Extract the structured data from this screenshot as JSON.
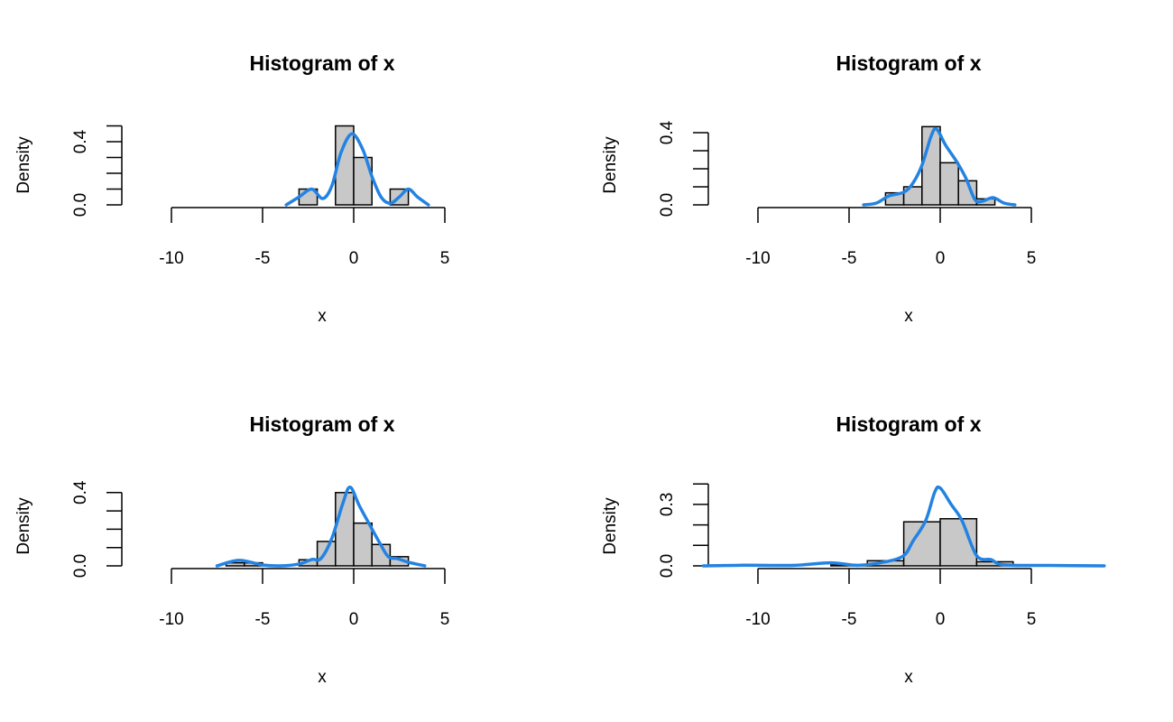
{
  "chart_data": [
    {
      "type": "bar",
      "title": "Histogram of x",
      "xlabel": "x",
      "ylabel": "Density",
      "xlim": [
        -10,
        5
      ],
      "ylim": [
        0,
        0.5
      ],
      "x_ticks": [
        "-10",
        "-5",
        "0",
        "5"
      ],
      "y_ticks": [
        0,
        0.1,
        0.2,
        0.3,
        0.4,
        0.5
      ],
      "y_tick_labels": [
        "0.0",
        "0.4"
      ],
      "bins": [
        [
          -3,
          -2
        ],
        [
          -2,
          -1
        ],
        [
          -1,
          0
        ],
        [
          0,
          1
        ],
        [
          1,
          2
        ],
        [
          2,
          3
        ]
      ],
      "values": [
        0.1,
        0,
        0.5,
        0.3,
        0,
        0.1
      ],
      "density_curve": {
        "color": "#2383E2",
        "points": [
          [
            -3.7,
            0.0
          ],
          [
            -3,
            0.05
          ],
          [
            -2.3,
            0.1
          ],
          [
            -1.7,
            0.04
          ],
          [
            -1.2,
            0.12
          ],
          [
            -0.7,
            0.33
          ],
          [
            -0.1,
            0.45
          ],
          [
            0.5,
            0.35
          ],
          [
            1,
            0.18
          ],
          [
            1.5,
            0.05
          ],
          [
            2,
            0.01
          ],
          [
            2.5,
            0.05
          ],
          [
            3,
            0.1
          ],
          [
            3.5,
            0.05
          ],
          [
            4.1,
            0.0
          ]
        ]
      }
    },
    {
      "type": "bar",
      "title": "Histogram of x",
      "xlabel": "x",
      "ylabel": "Density",
      "xlim": [
        -10,
        5
      ],
      "ylim": [
        0,
        0.4
      ],
      "x_ticks": [
        "-10",
        "-5",
        "0",
        "5"
      ],
      "y_ticks": [
        0,
        0.1,
        0.2,
        0.3,
        0.4
      ],
      "y_tick_labels": [
        "0.0",
        "0.4"
      ],
      "bins": [
        [
          -3,
          -2
        ],
        [
          -2,
          -1
        ],
        [
          -1,
          0
        ],
        [
          0,
          1
        ],
        [
          1,
          2
        ],
        [
          2,
          3
        ]
      ],
      "values": [
        0.0667,
        0.1,
        0.4333,
        0.2333,
        0.1333,
        0.0333
      ],
      "density_curve": {
        "color": "#2383E2",
        "points": [
          [
            -4.2,
            0
          ],
          [
            -3.5,
            0.01
          ],
          [
            -2.8,
            0.05
          ],
          [
            -2,
            0.07
          ],
          [
            -1.5,
            0.12
          ],
          [
            -1,
            0.22
          ],
          [
            -0.5,
            0.38
          ],
          [
            -0.2,
            0.42
          ],
          [
            0.3,
            0.33
          ],
          [
            0.9,
            0.24
          ],
          [
            1.4,
            0.15
          ],
          [
            1.9,
            0.03
          ],
          [
            2.3,
            0.02
          ],
          [
            2.9,
            0.04
          ],
          [
            3.5,
            0.01
          ],
          [
            4.1,
            0
          ]
        ]
      }
    },
    {
      "type": "bar",
      "title": "Histogram of x",
      "xlabel": "x",
      "ylabel": "Density",
      "xlim": [
        -10,
        5
      ],
      "ylim": [
        0,
        0.4
      ],
      "x_ticks": [
        "-10",
        "-5",
        "0",
        "5"
      ],
      "y_ticks": [
        0,
        0.1,
        0.2,
        0.3,
        0.4
      ],
      "y_tick_labels": [
        "0.0",
        "0.4"
      ],
      "bins": [
        [
          -7,
          -6
        ],
        [
          -6,
          -5
        ],
        [
          -5,
          -4
        ],
        [
          -4,
          -3
        ],
        [
          -3,
          -2
        ],
        [
          -2,
          -1
        ],
        [
          -1,
          0
        ],
        [
          0,
          1
        ],
        [
          1,
          2
        ],
        [
          2,
          3
        ]
      ],
      "values": [
        0.0167,
        0.0167,
        0,
        0,
        0.0333,
        0.1333,
        0.4,
        0.2333,
        0.1167,
        0.05
      ],
      "density_curve": {
        "color": "#2383E2",
        "points": [
          [
            -7.5,
            0
          ],
          [
            -6.3,
            0.03
          ],
          [
            -5,
            0.005
          ],
          [
            -4,
            0
          ],
          [
            -3,
            0.01
          ],
          [
            -2.3,
            0.035
          ],
          [
            -1.8,
            0.04
          ],
          [
            -1.2,
            0.15
          ],
          [
            -0.6,
            0.34
          ],
          [
            -0.2,
            0.43
          ],
          [
            0.3,
            0.33
          ],
          [
            0.9,
            0.22
          ],
          [
            1.4,
            0.13
          ],
          [
            1.9,
            0.05
          ],
          [
            2.4,
            0.04
          ],
          [
            3,
            0.02
          ],
          [
            3.9,
            0
          ]
        ]
      }
    },
    {
      "type": "bar",
      "title": "Histogram of x",
      "xlabel": "x",
      "ylabel": "Density",
      "xlim": [
        -13,
        9
      ],
      "ylim": [
        0,
        0.4
      ],
      "x_ticks": [
        "-10",
        "-5",
        "0",
        "5"
      ],
      "y_ticks": [
        0,
        0.1,
        0.2,
        0.3,
        0.4
      ],
      "y_tick_labels": [
        "0.0",
        "0.3"
      ],
      "bins": [
        [
          -6,
          -4
        ],
        [
          -4,
          -2
        ],
        [
          -2,
          0
        ],
        [
          0,
          2
        ],
        [
          2,
          4
        ],
        [
          4,
          6
        ]
      ],
      "values": [
        0.005,
        0.025,
        0.215,
        0.23,
        0.02,
        0.005
      ],
      "density_curve": {
        "color": "#2383E2",
        "points": [
          [
            -13,
            0
          ],
          [
            -11,
            0.003
          ],
          [
            -8,
            0.003
          ],
          [
            -6,
            0.015
          ],
          [
            -4.5,
            0.003
          ],
          [
            -3,
            0.02
          ],
          [
            -2,
            0.05
          ],
          [
            -1.5,
            0.12
          ],
          [
            -0.8,
            0.22
          ],
          [
            -0.3,
            0.36
          ],
          [
            0,
            0.38
          ],
          [
            0.6,
            0.3
          ],
          [
            1.2,
            0.22
          ],
          [
            2,
            0.05
          ],
          [
            2.8,
            0.03
          ],
          [
            3.5,
            0.005
          ],
          [
            6,
            0.002
          ],
          [
            9,
            0
          ]
        ]
      }
    }
  ]
}
